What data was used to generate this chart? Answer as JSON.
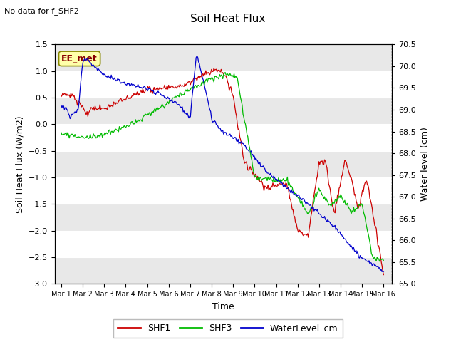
{
  "title": "Soil Heat Flux",
  "subtitle": "No data for f_SHF2",
  "annotation": "EE_met",
  "xlabel": "Time",
  "ylabel_left": "Soil Heat Flux (W/m2)",
  "ylabel_right": "Water level (cm)",
  "ylim_left": [
    -3.0,
    1.5
  ],
  "ylim_right": [
    65.0,
    70.5
  ],
  "yticks_left": [
    -3.0,
    -2.5,
    -2.0,
    -1.5,
    -1.0,
    -0.5,
    0.0,
    0.5,
    1.0,
    1.5
  ],
  "yticks_right": [
    65.0,
    65.5,
    66.0,
    66.5,
    67.0,
    67.5,
    68.0,
    68.5,
    69.0,
    69.5,
    70.0,
    70.5
  ],
  "bg_color": "#ffffff",
  "plot_bg_color": "#ffffff",
  "band_colors": [
    "#e8e8e8",
    "#f0f0f0"
  ],
  "grid_color": "white",
  "legend": [
    "SHF1",
    "SHF3",
    "WaterLevel_cm"
  ],
  "legend_colors": [
    "#cc0000",
    "#00bb00",
    "#0000cc"
  ],
  "shf1_color": "#cc0000",
  "shf3_color": "#00bb00",
  "water_color": "#0000cc",
  "annotation_bg": "#ffffaa",
  "annotation_border": "#888800",
  "annotation_text_color": "#880000"
}
